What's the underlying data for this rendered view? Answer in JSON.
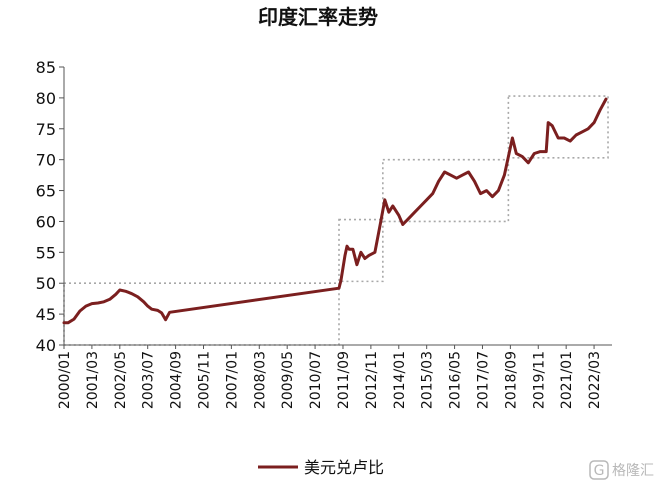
{
  "chart_data": {
    "type": "line",
    "title": "印度汇率走势",
    "xlabel": "",
    "ylabel": "",
    "ylim": [
      40,
      85
    ],
    "yticks": [
      40,
      45,
      50,
      55,
      60,
      65,
      70,
      75,
      80,
      85
    ],
    "x_ticks": [
      "2000/01",
      "2001/03",
      "2002/05",
      "2003/07",
      "2004/09",
      "2005/11",
      "2007/01",
      "2008/03",
      "2009/05",
      "2010/07",
      "2011/09",
      "2012/11",
      "2014/01",
      "2015/03",
      "2016/05",
      "2017/07",
      "2018/09",
      "2019/11",
      "2021/01",
      "2022/03"
    ],
    "series": [
      {
        "name": "美元兑卢比",
        "color": "#7b1f1f",
        "points": [
          [
            "2000/01",
            43.6
          ],
          [
            "2000/03",
            43.6
          ],
          [
            "2000/06",
            44.2
          ],
          [
            "2000/09",
            45.5
          ],
          [
            "2000/12",
            46.3
          ],
          [
            "2001/03",
            46.7
          ],
          [
            "2001/06",
            46.8
          ],
          [
            "2001/09",
            47.0
          ],
          [
            "2001/12",
            47.4
          ],
          [
            "2002/03",
            48.2
          ],
          [
            "2002/05",
            48.9
          ],
          [
            "2002/08",
            48.7
          ],
          [
            "2002/11",
            48.3
          ],
          [
            "2003/02",
            47.8
          ],
          [
            "2003/05",
            47.0
          ],
          [
            "2003/07",
            46.3
          ],
          [
            "2003/09",
            45.8
          ],
          [
            "2003/12",
            45.6
          ],
          [
            "2004/02",
            45.2
          ],
          [
            "2004/04",
            44.1
          ],
          [
            "2004/06",
            45.3
          ],
          [
            "2011/07",
            49.2
          ],
          [
            "2011/08",
            50.5
          ],
          [
            "2011/09",
            52.5
          ],
          [
            "2011/10",
            54.5
          ],
          [
            "2011/11",
            56.0
          ],
          [
            "2011/12",
            55.5
          ],
          [
            "2012/02",
            55.5
          ],
          [
            "2012/04",
            53.0
          ],
          [
            "2012/06",
            55.0
          ],
          [
            "2012/08",
            54.0
          ],
          [
            "2012/10",
            54.5
          ],
          [
            "2013/01",
            55.0
          ],
          [
            "2013/04",
            60.0
          ],
          [
            "2013/06",
            63.5
          ],
          [
            "2013/08",
            61.5
          ],
          [
            "2013/10",
            62.5
          ],
          [
            "2014/01",
            61.0
          ],
          [
            "2014/03",
            59.5
          ],
          [
            "2014/06",
            60.5
          ],
          [
            "2014/09",
            61.5
          ],
          [
            "2014/12",
            62.5
          ],
          [
            "2015/03",
            63.5
          ],
          [
            "2015/06",
            64.5
          ],
          [
            "2015/09",
            66.5
          ],
          [
            "2015/12",
            68.0
          ],
          [
            "2016/03",
            67.5
          ],
          [
            "2016/06",
            67.0
          ],
          [
            "2016/09",
            67.5
          ],
          [
            "2016/12",
            68.0
          ],
          [
            "2017/03",
            66.5
          ],
          [
            "2017/06",
            64.5
          ],
          [
            "2017/09",
            65.0
          ],
          [
            "2017/12",
            64.0
          ],
          [
            "2018/03",
            65.0
          ],
          [
            "2018/06",
            67.5
          ],
          [
            "2018/08",
            70.5
          ],
          [
            "2018/10",
            73.5
          ],
          [
            "2018/12",
            71.0
          ],
          [
            "2019/03",
            70.5
          ],
          [
            "2019/06",
            69.5
          ],
          [
            "2019/09",
            71.0
          ],
          [
            "2019/12",
            71.3
          ],
          [
            "2020/03",
            71.3
          ],
          [
            "2020/04",
            76.0
          ],
          [
            "2020/06",
            75.5
          ],
          [
            "2020/09",
            73.5
          ],
          [
            "2020/12",
            73.5
          ],
          [
            "2021/03",
            73.0
          ],
          [
            "2021/06",
            74.0
          ],
          [
            "2021/09",
            74.5
          ],
          [
            "2021/12",
            75.0
          ],
          [
            "2022/03",
            76.0
          ],
          [
            "2022/06",
            78.0
          ],
          [
            "2022/09",
            79.8
          ]
        ]
      }
    ],
    "annotation_boxes": [
      {
        "x0": "2000/01",
        "x1": "2011/07",
        "y0": 40,
        "y1": 50
      },
      {
        "x0": "2011/07",
        "x1": "2013/05",
        "y0": 50.3,
        "y1": 60.3
      },
      {
        "x0": "2013/05",
        "x1": "2018/08",
        "y0": 60,
        "y1": 70
      },
      {
        "x0": "2018/08",
        "x1": "2022/10",
        "y0": 70.3,
        "y1": 80.3
      }
    ],
    "legend": {
      "position": "bottom",
      "entries": [
        "美元兑卢比"
      ]
    },
    "grid": false
  },
  "watermark": {
    "text": "格隆汇",
    "symbol": "G"
  }
}
